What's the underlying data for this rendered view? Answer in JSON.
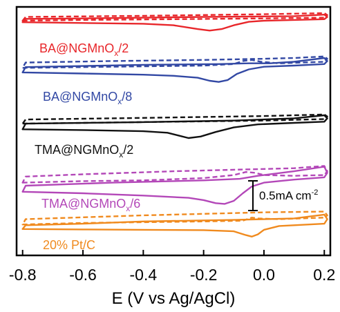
{
  "chart_data": {
    "type": "line",
    "title": "",
    "xlabel": "E (V vs Ag/AgCl)",
    "ylabel": "",
    "xlim": [
      -0.82,
      0.22
    ],
    "xticks": [
      -0.8,
      -0.6,
      -0.4,
      -0.2,
      0.0,
      0.2
    ],
    "xtick_labels": [
      "-0.8",
      "-0.6",
      "-0.4",
      "-0.2",
      "0.0",
      "0.2"
    ],
    "scale_bar": {
      "label": "0.5mA cm",
      "superscript": "-2",
      "value_mA_cm2": 0.5
    },
    "line_styles": {
      "solid": "solid",
      "dashed": "dashed"
    },
    "series": [
      {
        "label": "BA@NGMnO",
        "sub": "x",
        "suffix": "/2",
        "color": "#e8262a",
        "solid": [
          [
            -0.8,
            -0.04
          ],
          [
            -0.6,
            -0.06
          ],
          [
            -0.4,
            -0.08
          ],
          [
            -0.3,
            -0.12
          ],
          [
            -0.22,
            -0.22
          ],
          [
            -0.18,
            -0.26
          ],
          [
            -0.14,
            -0.22
          ],
          [
            -0.1,
            -0.12
          ],
          [
            -0.05,
            -0.03
          ],
          [
            0.0,
            0.0
          ],
          [
            0.1,
            0.02
          ],
          [
            0.2,
            0.04
          ],
          [
            0.21,
            0.1
          ],
          [
            0.2,
            0.16
          ],
          [
            0.1,
            0.12
          ],
          [
            -0.2,
            0.1
          ],
          [
            -0.6,
            0.06
          ],
          [
            -0.79,
            0.05
          ]
        ],
        "dashed": [
          [
            -0.8,
            0.0
          ],
          [
            -0.6,
            0.02
          ],
          [
            -0.3,
            0.04
          ],
          [
            0.0,
            0.06
          ],
          [
            0.2,
            0.08
          ],
          [
            0.21,
            0.15
          ],
          [
            0.2,
            0.2
          ],
          [
            0.0,
            0.17
          ],
          [
            -0.4,
            0.13
          ],
          [
            -0.79,
            0.1
          ]
        ]
      },
      {
        "label": "BA@NGMnO",
        "sub": "x",
        "suffix": "/8",
        "color": "#3248a4",
        "solid": [
          [
            -0.8,
            -0.18
          ],
          [
            -0.6,
            -0.21
          ],
          [
            -0.4,
            -0.24
          ],
          [
            -0.3,
            -0.27
          ],
          [
            -0.22,
            -0.32
          ],
          [
            -0.18,
            -0.4
          ],
          [
            -0.15,
            -0.43
          ],
          [
            -0.12,
            -0.38
          ],
          [
            -0.09,
            -0.22
          ],
          [
            -0.05,
            -0.1
          ],
          [
            0.0,
            -0.03
          ],
          [
            0.1,
            0.0
          ],
          [
            0.2,
            0.04
          ],
          [
            0.21,
            0.12
          ],
          [
            0.2,
            0.2
          ],
          [
            0.1,
            0.1
          ],
          [
            0.02,
            0.06
          ],
          [
            -0.05,
            0.06
          ],
          [
            -0.15,
            0.04
          ],
          [
            -0.4,
            0.02
          ],
          [
            -0.79,
            -0.04
          ]
        ],
        "dashed": [
          [
            -0.8,
            -0.06
          ],
          [
            -0.6,
            -0.04
          ],
          [
            -0.4,
            -0.02
          ],
          [
            -0.2,
            0.0
          ],
          [
            -0.1,
            0.04
          ],
          [
            -0.07,
            0.12
          ],
          [
            -0.04,
            0.15
          ],
          [
            -0.01,
            0.1
          ],
          [
            0.05,
            0.06
          ],
          [
            0.2,
            0.1
          ],
          [
            0.21,
            0.18
          ],
          [
            0.2,
            0.24
          ],
          [
            0.1,
            0.2
          ],
          [
            0.0,
            0.18
          ],
          [
            -0.2,
            0.15
          ],
          [
            -0.5,
            0.12
          ],
          [
            -0.79,
            0.08
          ]
        ]
      },
      {
        "label": "TMA@NGMnO",
        "sub": "x",
        "suffix": "/2",
        "color": "#111111",
        "solid": [
          [
            -0.8,
            -0.17
          ],
          [
            -0.6,
            -0.19
          ],
          [
            -0.4,
            -0.22
          ],
          [
            -0.32,
            -0.26
          ],
          [
            -0.28,
            -0.34
          ],
          [
            -0.25,
            -0.4
          ],
          [
            -0.21,
            -0.36
          ],
          [
            -0.16,
            -0.24
          ],
          [
            -0.1,
            -0.12
          ],
          [
            -0.02,
            -0.04
          ],
          [
            0.1,
            0.0
          ],
          [
            0.2,
            0.03
          ],
          [
            0.21,
            0.12
          ],
          [
            0.2,
            0.2
          ],
          [
            0.1,
            0.12
          ],
          [
            -0.1,
            0.06
          ],
          [
            -0.4,
            0.02
          ],
          [
            -0.79,
            -0.02
          ]
        ],
        "dashed": [
          [
            -0.8,
            -0.02
          ],
          [
            -0.6,
            0.0
          ],
          [
            -0.3,
            0.03
          ],
          [
            0.0,
            0.06
          ],
          [
            0.2,
            0.1
          ],
          [
            0.21,
            0.17
          ],
          [
            0.2,
            0.22
          ],
          [
            0.0,
            0.18
          ],
          [
            -0.4,
            0.13
          ],
          [
            -0.79,
            0.09
          ]
        ]
      },
      {
        "label": "TMA@NGMnO",
        "sub": "x",
        "suffix": "/6",
        "color": "#b347b8",
        "solid": [
          [
            -0.8,
            -0.36
          ],
          [
            -0.6,
            -0.4
          ],
          [
            -0.4,
            -0.46
          ],
          [
            -0.25,
            -0.52
          ],
          [
            -0.2,
            -0.58
          ],
          [
            -0.16,
            -0.66
          ],
          [
            -0.13,
            -0.68
          ],
          [
            -0.1,
            -0.6
          ],
          [
            -0.07,
            -0.4
          ],
          [
            -0.04,
            -0.22
          ],
          [
            0.0,
            -0.12
          ],
          [
            0.1,
            -0.04
          ],
          [
            0.2,
            0.02
          ],
          [
            0.21,
            0.14
          ],
          [
            0.2,
            0.3
          ],
          [
            0.1,
            0.18
          ],
          [
            -0.02,
            0.06
          ],
          [
            -0.08,
            -0.02
          ],
          [
            -0.2,
            -0.06
          ],
          [
            -0.5,
            -0.12
          ],
          [
            -0.79,
            -0.2
          ]
        ],
        "dashed": [
          [
            -0.8,
            -0.12
          ],
          [
            -0.6,
            -0.08
          ],
          [
            -0.4,
            -0.06
          ],
          [
            -0.2,
            0.0
          ],
          [
            -0.1,
            0.08
          ],
          [
            -0.06,
            0.16
          ],
          [
            -0.03,
            0.14
          ],
          [
            0.0,
            0.08
          ],
          [
            0.1,
            0.06
          ],
          [
            0.2,
            0.08
          ],
          [
            0.21,
            0.18
          ],
          [
            0.2,
            0.32
          ],
          [
            0.1,
            0.26
          ],
          [
            0.0,
            0.24
          ],
          [
            -0.3,
            0.18
          ],
          [
            -0.6,
            0.1
          ],
          [
            -0.79,
            0.04
          ]
        ]
      },
      {
        "label": "20% Pt/C",
        "sub": "",
        "suffix": "",
        "color": "#f08a1e",
        "solid": [
          [
            -0.8,
            -0.16
          ],
          [
            -0.6,
            -0.17
          ],
          [
            -0.4,
            -0.18
          ],
          [
            -0.2,
            -0.19
          ],
          [
            -0.1,
            -0.22
          ],
          [
            -0.06,
            -0.32
          ],
          [
            -0.04,
            -0.36
          ],
          [
            -0.02,
            -0.3
          ],
          [
            0.0,
            -0.18
          ],
          [
            0.05,
            -0.08
          ],
          [
            0.15,
            -0.04
          ],
          [
            0.2,
            -0.02
          ],
          [
            0.21,
            0.1
          ],
          [
            0.2,
            0.22
          ],
          [
            0.1,
            0.12
          ],
          [
            -0.1,
            0.08
          ],
          [
            -0.4,
            0.04
          ],
          [
            -0.6,
            -0.02
          ],
          [
            -0.79,
            -0.06
          ]
        ],
        "dashed": [
          [
            -0.8,
            -0.04
          ],
          [
            -0.6,
            0.0
          ],
          [
            -0.4,
            0.02
          ],
          [
            -0.2,
            0.04
          ],
          [
            -0.07,
            0.06
          ],
          [
            -0.04,
            0.14
          ],
          [
            -0.02,
            0.12
          ],
          [
            0.05,
            0.1
          ],
          [
            0.2,
            0.14
          ],
          [
            0.21,
            0.2
          ],
          [
            0.2,
            0.3
          ],
          [
            0.0,
            0.28
          ],
          [
            -0.4,
            0.2
          ],
          [
            -0.79,
            0.1
          ]
        ]
      }
    ]
  }
}
